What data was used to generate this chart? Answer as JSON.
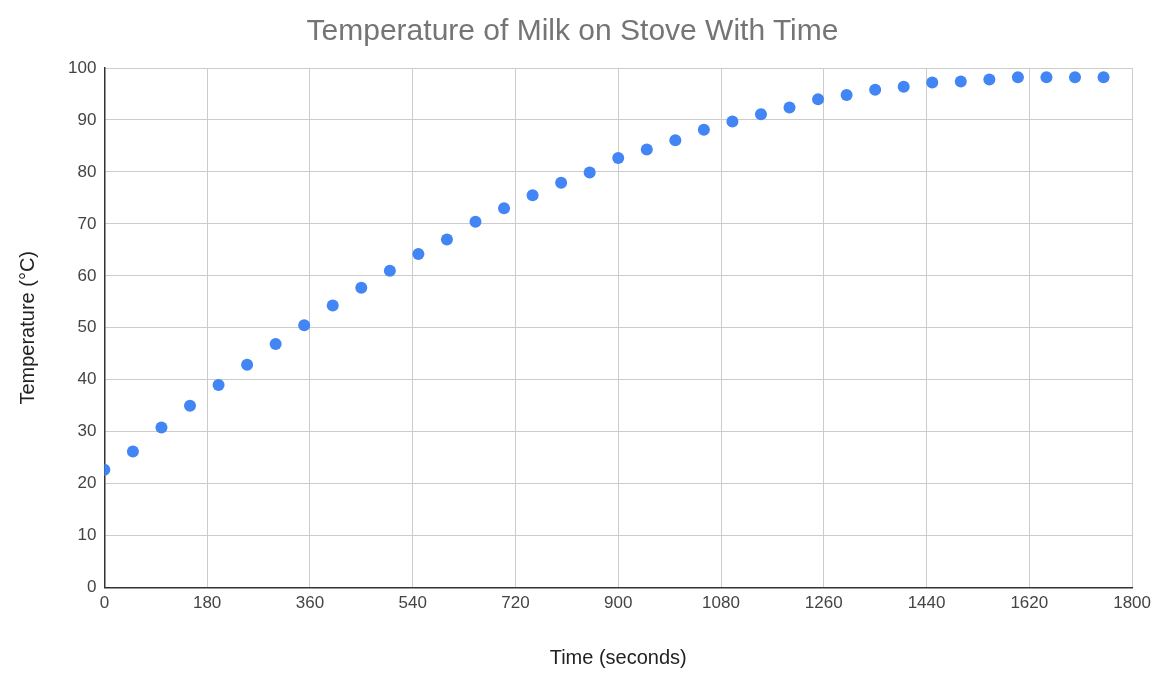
{
  "chart_data": {
    "type": "scatter",
    "title": "Temperature of Milk on Stove With Time",
    "xlabel": "Time (seconds)",
    "ylabel": "Temperature (°C)",
    "x": [
      0,
      50,
      100,
      150,
      200,
      250,
      300,
      350,
      400,
      450,
      500,
      550,
      600,
      650,
      700,
      750,
      800,
      850,
      900,
      950,
      1000,
      1050,
      1100,
      1150,
      1200,
      1250,
      1300,
      1350,
      1400,
      1450,
      1500,
      1550,
      1600,
      1650,
      1700,
      1750
    ],
    "series": [
      {
        "color": "#4285f4",
        "values": [
          22.7,
          26.2,
          30.8,
          35,
          39,
          42.9,
          46.9,
          50.5,
          54.3,
          57.7,
          61,
          64.2,
          67,
          70.4,
          73,
          75.5,
          77.9,
          79.9,
          82.7,
          84.3,
          86.1,
          88.1,
          89.7,
          91.1,
          92.4,
          94,
          94.8,
          95.8,
          96.4,
          97.2,
          97.4,
          97.8,
          98.2,
          98.2,
          98.2,
          98.2
        ]
      }
    ],
    "xlim": [
      0,
      1800
    ],
    "xticks": [
      0,
      180,
      360,
      540,
      720,
      900,
      1080,
      1260,
      1440,
      1620,
      1800
    ],
    "ylim": [
      0,
      100
    ],
    "yticks": [
      0,
      10,
      20,
      30,
      40,
      50,
      60,
      70,
      80,
      90,
      100
    ],
    "grid": true,
    "legend": false,
    "marker": "circle"
  }
}
